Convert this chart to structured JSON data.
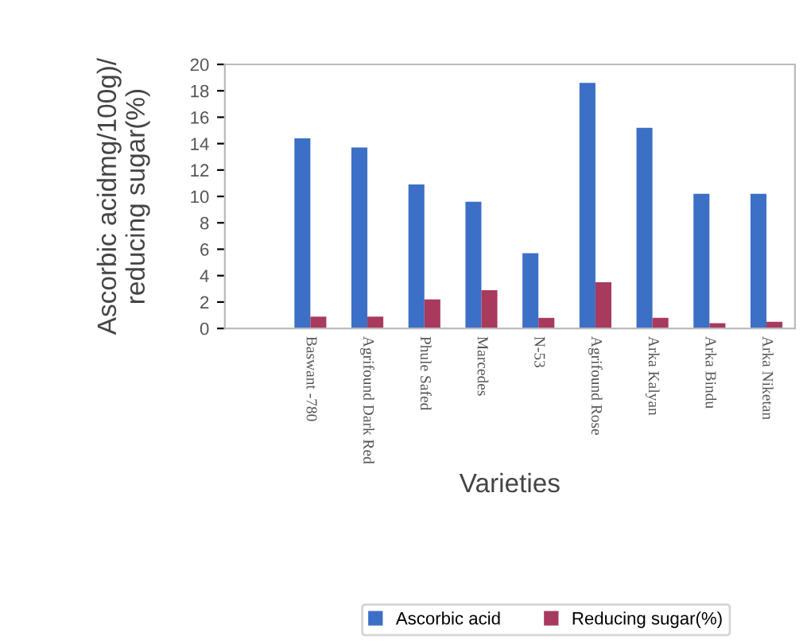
{
  "chart_data": {
    "type": "bar",
    "xlabel": "Varieties",
    "ylabel": "Ascorbic acidmg/100g)/\nreducing sugar(%)",
    "categories": [
      null,
      "Baswant -780",
      "Agrifound Dark Red",
      "Phule Safed",
      "Marcedes",
      "N-53",
      "Agrifound Rose",
      "Arka Kalyan",
      "Arka Bindu",
      "Arka Niketan"
    ],
    "series": [
      {
        "name": "Ascorbic acid",
        "color": "#3c6fc6",
        "values": [
          null,
          14.4,
          13.7,
          10.9,
          9.6,
          5.7,
          18.6,
          15.2,
          10.2,
          10.2
        ]
      },
      {
        "name": "Reducing sugar(%)",
        "color": "#a83a5e",
        "values": [
          null,
          0.9,
          0.9,
          2.2,
          2.9,
          0.8,
          3.5,
          0.8,
          0.4,
          0.5
        ]
      }
    ],
    "ylim": [
      0,
      20
    ],
    "yticks": [
      0,
      2,
      4,
      6,
      8,
      10,
      12,
      14,
      16,
      18,
      20
    ],
    "legend": "bottom"
  }
}
